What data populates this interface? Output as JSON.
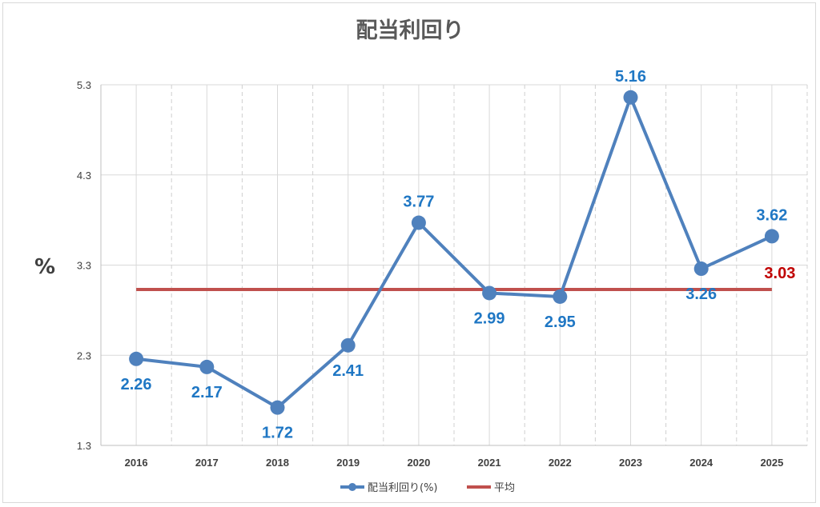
{
  "chart_data": {
    "type": "line",
    "title": "配当利回り",
    "ylabel": "%",
    "xlabel": "",
    "categories": [
      "2016",
      "2017",
      "2018",
      "2019",
      "2020",
      "2021",
      "2022",
      "2023",
      "2024",
      "2025"
    ],
    "yticks": [
      "1.3",
      "2.3",
      "3.3",
      "4.3",
      "5.3"
    ],
    "ylim": [
      1.3,
      5.3
    ],
    "grid": true,
    "legend_position": "bottom",
    "series": [
      {
        "name": "配当利回り(%)",
        "color": "#4f81bd",
        "values": [
          2.26,
          2.17,
          1.72,
          2.41,
          3.77,
          2.99,
          2.95,
          5.16,
          3.26,
          3.62
        ],
        "labels": [
          "2.26",
          "2.17",
          "1.72",
          "2.41",
          "3.77",
          "2.99",
          "2.95",
          "5.16",
          "3.26",
          "3.62"
        ]
      },
      {
        "name": "平均",
        "color": "#c0504d",
        "value": 3.03,
        "label": "3.03",
        "label_color": "#c00000"
      }
    ],
    "data_label_color": "#1f77c4"
  }
}
